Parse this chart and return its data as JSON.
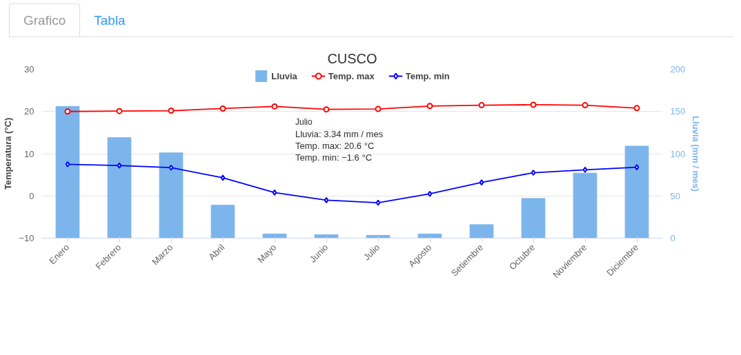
{
  "chart_data": {
    "type": "bar",
    "title": "CUSCO",
    "categories": [
      "Enero",
      "Febrero",
      "Marzo",
      "Abril",
      "Mayo",
      "Junio",
      "Julio",
      "Agosto",
      "Setiembre",
      "Octubre",
      "Noviembre",
      "Diciembre"
    ],
    "series": [
      {
        "name": "Lluvia",
        "axis": "y2",
        "color": "#7cb5ec",
        "values": [
          156,
          119,
          101,
          39,
          5,
          4,
          3.34,
          5,
          16,
          47,
          77,
          109
        ]
      },
      {
        "name": "Temp. max",
        "type": "line",
        "marker": "circle",
        "color": "#ff0000",
        "values": [
          20.0,
          20.1,
          20.2,
          20.7,
          21.2,
          20.5,
          20.6,
          21.3,
          21.5,
          21.6,
          21.5,
          20.8
        ]
      },
      {
        "name": "Temp. min",
        "type": "line",
        "marker": "diamond",
        "color": "#0000ff",
        "values": [
          7.5,
          7.2,
          6.7,
          4.3,
          0.8,
          -1.0,
          -1.6,
          0.5,
          3.2,
          5.5,
          6.2,
          6.8
        ]
      }
    ],
    "ylabel": "Temperatura (°C)",
    "y2label": "Lluvia (mm / mes)",
    "ylim": [
      -10,
      30
    ],
    "yticks": [
      -10,
      0,
      10,
      20,
      30
    ],
    "y2lim": [
      0,
      200
    ],
    "y2ticks": [
      0,
      50,
      100,
      150,
      200
    ],
    "grid": "y",
    "legend": "top",
    "line_style": "solid",
    "annotations": [
      "Grafico",
      "Tabla",
      "Julio",
      "Lluvia: 3.34 mm / mes",
      "Temp. max: 20.6 °C",
      "Temp. min: −1.6 °C"
    ]
  }
}
